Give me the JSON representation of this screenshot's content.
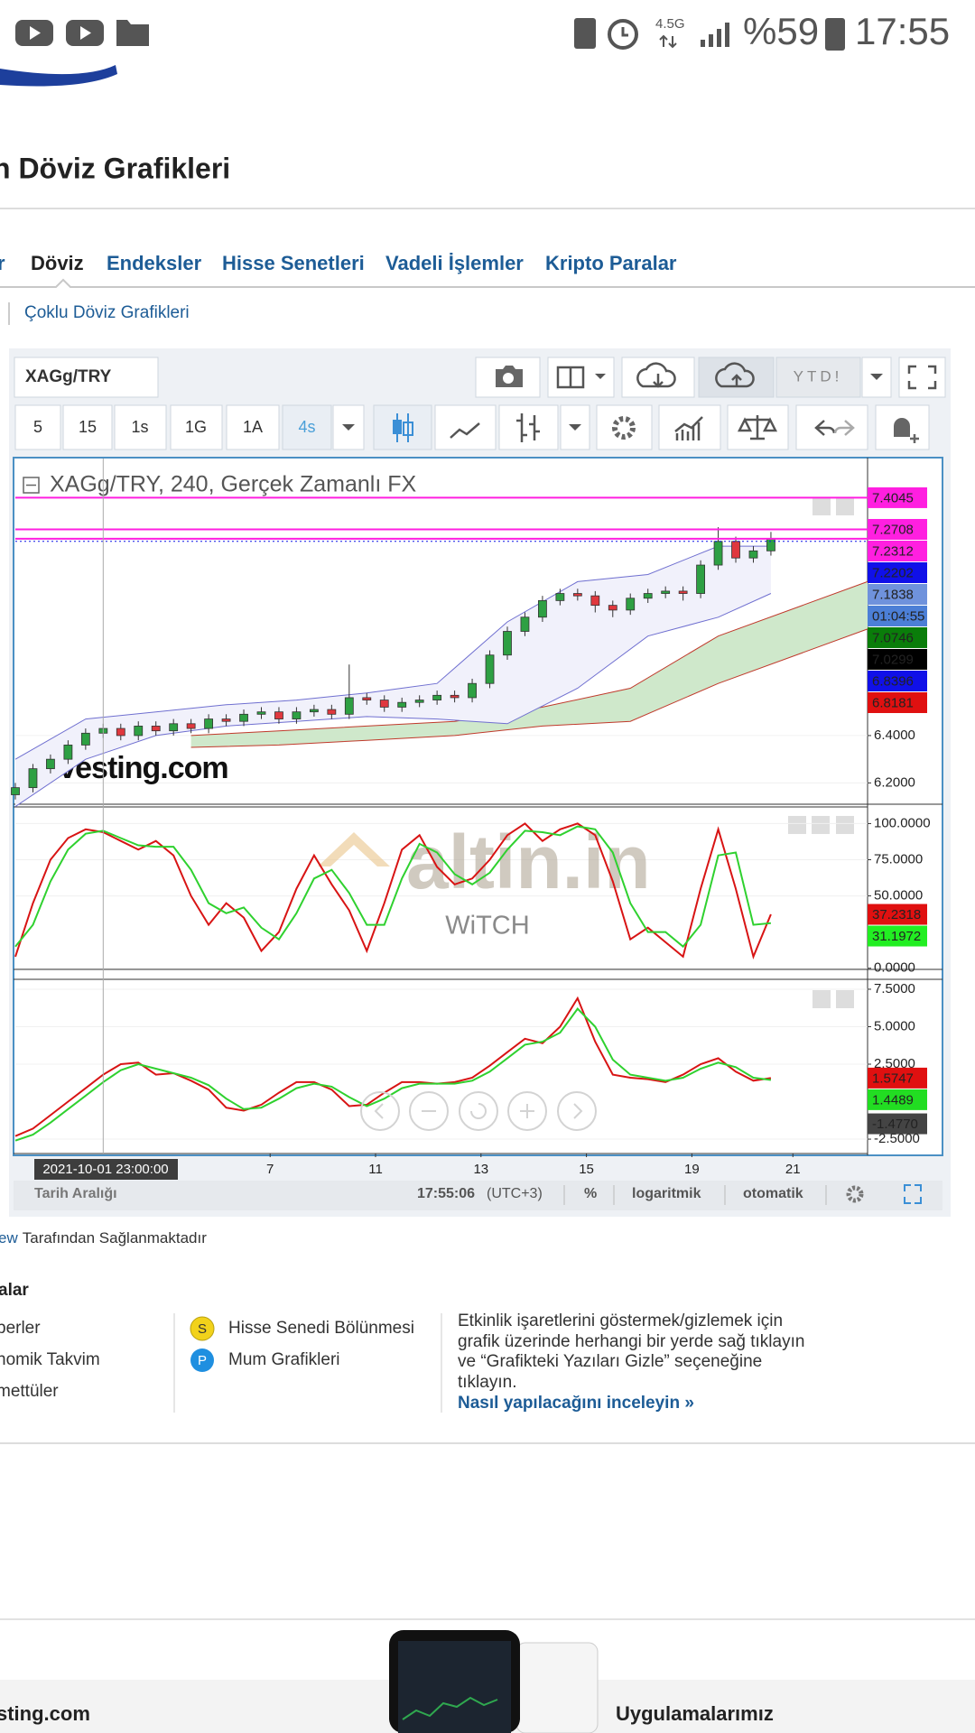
{
  "status_bar": {
    "network": "4.5G",
    "battery": "%59",
    "time": "17:55"
  },
  "header": {
    "title": "n Döviz Grafikleri"
  },
  "nav": {
    "items": [
      "r",
      "Döviz",
      "Endeksler",
      "Hisse Senetleri",
      "Vadeli İşlemler",
      "Kripto Paralar"
    ]
  },
  "breadcrumb": "Çoklu Döviz Grafikleri",
  "toolbar": {
    "symbol": "XAGg/TRY",
    "range": "YTD!",
    "intervals": [
      "5",
      "15",
      "1s",
      "1G",
      "1A",
      "4s"
    ]
  },
  "chart_data": [
    {
      "type": "candlestick",
      "title": "XAGg/TRY, 240, Gerçek Zamanlı FX",
      "watermark": "Investing.com",
      "x": [
        0,
        2,
        4,
        6,
        8,
        10,
        12,
        14,
        16,
        18,
        20,
        22,
        24,
        26,
        28,
        30,
        32,
        34,
        36,
        38,
        40,
        42,
        44,
        46,
        48,
        50,
        52,
        54,
        56,
        58,
        60,
        62,
        64,
        66,
        68,
        70,
        72,
        74,
        76,
        78,
        80,
        82,
        84,
        86
      ],
      "open": [
        6.15,
        6.18,
        6.26,
        6.3,
        6.36,
        6.41,
        6.43,
        6.4,
        6.44,
        6.42,
        6.45,
        6.43,
        6.47,
        6.46,
        6.49,
        6.5,
        6.47,
        6.5,
        6.51,
        6.49,
        6.56,
        6.55,
        6.52,
        6.54,
        6.55,
        6.57,
        6.56,
        6.62,
        6.74,
        6.84,
        6.9,
        6.97,
        7.0,
        6.99,
        6.95,
        6.93,
        6.98,
        7.0,
        7.01,
        7.0,
        7.12,
        7.22,
        7.15,
        7.18
      ],
      "high": [
        6.2,
        6.28,
        6.32,
        6.38,
        6.43,
        6.45,
        6.45,
        6.46,
        6.46,
        6.47,
        6.47,
        6.49,
        6.49,
        6.51,
        6.52,
        6.52,
        6.52,
        6.53,
        6.53,
        6.7,
        6.58,
        6.57,
        6.56,
        6.57,
        6.59,
        6.59,
        6.64,
        6.76,
        6.86,
        6.92,
        6.99,
        7.02,
        7.02,
        7.01,
        6.97,
        7.0,
        7.02,
        7.03,
        7.03,
        7.14,
        7.28,
        7.24,
        7.2,
        7.26
      ],
      "low": [
        6.13,
        6.16,
        6.24,
        6.28,
        6.34,
        6.39,
        6.38,
        6.38,
        6.4,
        6.4,
        6.41,
        6.41,
        6.44,
        6.44,
        6.47,
        6.45,
        6.45,
        6.48,
        6.47,
        6.47,
        6.53,
        6.5,
        6.5,
        6.52,
        6.53,
        6.54,
        6.54,
        6.6,
        6.72,
        6.82,
        6.88,
        6.95,
        6.97,
        6.92,
        6.9,
        6.91,
        6.96,
        6.98,
        6.97,
        6.98,
        7.1,
        7.13,
        7.13,
        7.16
      ],
      "close": [
        6.18,
        6.26,
        6.3,
        6.36,
        6.41,
        6.43,
        6.4,
        6.44,
        6.42,
        6.45,
        6.43,
        6.47,
        6.46,
        6.49,
        6.5,
        6.47,
        6.5,
        6.51,
        6.49,
        6.56,
        6.55,
        6.52,
        6.54,
        6.55,
        6.57,
        6.56,
        6.62,
        6.74,
        6.84,
        6.9,
        6.97,
        7.0,
        6.99,
        6.95,
        6.93,
        6.98,
        7.0,
        7.01,
        7.0,
        7.12,
        7.22,
        7.15,
        7.18,
        7.23
      ],
      "up_color": "#2ea043",
      "down_color": "#e0383e",
      "bands": {
        "x": [
          0,
          8,
          16,
          24,
          32,
          40,
          48,
          56,
          64,
          72,
          80,
          86
        ],
        "upper": [
          6.3,
          6.47,
          6.5,
          6.53,
          6.55,
          6.58,
          6.62,
          6.88,
          7.05,
          7.08,
          7.2,
          7.2
        ],
        "lower": [
          6.1,
          6.3,
          6.4,
          6.44,
          6.46,
          6.48,
          6.47,
          6.45,
          6.6,
          6.82,
          6.9,
          7.0
        ],
        "color": "#6f6fd0",
        "fill": "#f1f1fb"
      },
      "cloud": {
        "x": [
          20,
          30,
          40,
          50,
          60,
          70,
          80,
          97
        ],
        "upper": [
          6.4,
          6.42,
          6.44,
          6.46,
          6.52,
          6.6,
          6.82,
          7.05
        ],
        "lower": [
          6.35,
          6.36,
          6.38,
          6.4,
          6.44,
          6.46,
          6.62,
          6.85
        ],
        "color": "#c0392b",
        "fill": "#cfe8cb"
      },
      "xlim": [
        0,
        97
      ],
      "ylim": [
        6.11,
        7.57
      ],
      "yticks": [
        {
          "value": 6.2,
          "label": "6.2000"
        },
        {
          "value": 6.4,
          "label": "6.4000"
        }
      ],
      "price_tags": [
        {
          "value": 7.4045,
          "color": "#ff1fe0",
          "line_style": "solid"
        },
        {
          "value": 7.2708,
          "color": "#ff1fe0",
          "line_style": "solid"
        },
        {
          "value": 7.2312,
          "color": "#ff1fe0",
          "line_style": "solid"
        },
        {
          "value": 7.2202,
          "color": "#1010e8",
          "line_style": "dotted"
        },
        {
          "value": 7.1838,
          "color": "#6f92dc"
        },
        {
          "label": "01:04:55",
          "color": "#4c7fd6"
        },
        {
          "value": 7.0746,
          "color": "#0a7d0a"
        },
        {
          "value": 7.0299,
          "color": "#000000"
        },
        {
          "value": 6.8396,
          "color": "#1010e8"
        },
        {
          "value": 6.8181,
          "color": "#e01010"
        }
      ]
    },
    {
      "type": "line",
      "watermark": "altin.in",
      "watermark_sub": "WiTCH",
      "x": [
        0,
        2,
        4,
        6,
        8,
        10,
        12,
        14,
        16,
        18,
        20,
        22,
        24,
        26,
        28,
        30,
        32,
        34,
        36,
        38,
        40,
        42,
        44,
        46,
        48,
        50,
        52,
        54,
        56,
        58,
        60,
        62,
        64,
        66,
        68,
        70,
        72,
        74,
        76,
        78,
        80,
        82,
        84,
        86
      ],
      "series": [
        {
          "color": "#d81414",
          "values": [
            8,
            45,
            75,
            90,
            96,
            94,
            88,
            82,
            88,
            78,
            50,
            30,
            45,
            35,
            12,
            25,
            55,
            78,
            58,
            40,
            12,
            45,
            82,
            92,
            70,
            58,
            62,
            75,
            92,
            100,
            88,
            96,
            100,
            92,
            60,
            20,
            28,
            18,
            8,
            55,
            96,
            55,
            8,
            37.2318
          ]
        },
        {
          "color": "#2fd12f",
          "values": [
            15,
            30,
            60,
            82,
            93,
            95,
            90,
            85,
            84,
            84,
            68,
            45,
            38,
            42,
            28,
            20,
            38,
            62,
            68,
            52,
            30,
            30,
            62,
            86,
            80,
            65,
            58,
            66,
            82,
            95,
            94,
            92,
            98,
            96,
            80,
            45,
            25,
            25,
            15,
            30,
            78,
            80,
            30,
            31.1972
          ]
        }
      ],
      "xlim": [
        0,
        97
      ],
      "ylim": [
        -0.8,
        111.5
      ],
      "yticks": [
        {
          "value": 0,
          "label": "0.0000"
        },
        {
          "value": 50,
          "label": "50.0000"
        },
        {
          "value": 75,
          "label": "75.0000"
        },
        {
          "value": 100,
          "label": "100.0000"
        }
      ],
      "price_tags": [
        {
          "value": 37.2318,
          "color": "#e01010"
        },
        {
          "value": 31.1972,
          "color": "#22ee22",
          "text_color": "#222222"
        }
      ]
    },
    {
      "type": "line",
      "x": [
        0,
        2,
        4,
        6,
        8,
        10,
        12,
        14,
        16,
        18,
        20,
        22,
        24,
        26,
        28,
        30,
        32,
        34,
        36,
        38,
        40,
        42,
        44,
        46,
        48,
        50,
        52,
        54,
        56,
        58,
        60,
        62,
        64,
        66,
        68,
        70,
        72,
        74,
        76,
        78,
        80,
        82,
        84,
        86
      ],
      "series": [
        {
          "color": "#d81414",
          "values": [
            -2.3,
            -1.8,
            -0.9,
            0.0,
            0.9,
            1.8,
            2.5,
            2.6,
            1.8,
            1.9,
            1.4,
            0.8,
            -0.4,
            -0.6,
            -0.2,
            0.6,
            1.3,
            1.3,
            0.8,
            -0.3,
            -0.2,
            0.6,
            1.3,
            1.3,
            1.2,
            1.3,
            1.6,
            2.4,
            3.3,
            4.2,
            3.9,
            5.0,
            6.9,
            4.0,
            1.8,
            1.6,
            1.5,
            1.3,
            1.8,
            2.5,
            2.9,
            2.0,
            1.4,
            1.5747
          ]
        },
        {
          "color": "#2fd12f",
          "values": [
            -2.6,
            -2.2,
            -1.4,
            -0.5,
            0.4,
            1.3,
            2.1,
            2.5,
            2.2,
            1.9,
            1.6,
            1.1,
            0.2,
            -0.5,
            -0.4,
            0.2,
            0.9,
            1.2,
            1.0,
            0.3,
            -0.3,
            0.2,
            0.9,
            1.2,
            1.2,
            1.2,
            1.4,
            2.0,
            2.9,
            3.8,
            4.0,
            4.6,
            6.2,
            5.0,
            2.8,
            1.8,
            1.6,
            1.4,
            1.6,
            2.2,
            2.6,
            2.3,
            1.6,
            1.4489
          ]
        }
      ],
      "xlim": [
        0,
        97
      ],
      "ylim": [
        -3.46,
        8.16
      ],
      "yticks": [
        {
          "value": -2.5,
          "label": "-2.5000"
        },
        {
          "value": 2.5,
          "label": "2.5000"
        },
        {
          "value": 5,
          "label": "5.0000"
        },
        {
          "value": 7.5,
          "label": "7.5000"
        }
      ],
      "xticks": [
        {
          "value": 29,
          "label": "7"
        },
        {
          "value": 41,
          "label": "11"
        },
        {
          "value": 53,
          "label": "13"
        },
        {
          "value": 65,
          "label": "15"
        },
        {
          "value": 77,
          "label": "19"
        },
        {
          "value": 88.5,
          "label": "21"
        }
      ],
      "crosshair": {
        "x": 10,
        "label": "2021-10-01 23:00:00"
      },
      "price_tags": [
        {
          "value": 1.5747,
          "color": "#e01010"
        },
        {
          "value": 1.4489,
          "color": "#22dd22"
        },
        {
          "value": -1.477,
          "label": "-1.4770",
          "color": "#444444"
        }
      ]
    }
  ],
  "status_line": {
    "range": "Tarih Aralığı",
    "time": "17:55:06",
    "timezone": "(UTC+3)",
    "percent": "%",
    "log": "logaritmik",
    "auto": "otomatik"
  },
  "credit": {
    "link": "ew",
    "text": "Tarafından Sağlanmaktadır"
  },
  "legend": {
    "title": "alar",
    "items": [
      "berler",
      "nomik Takvim",
      "mettüler"
    ],
    "markers": [
      {
        "badge": "S",
        "label": "Hisse Senedi Bölünmesi"
      },
      {
        "badge": "P",
        "label": "Mum Grafikleri"
      }
    ],
    "note": "Etkinlik işaretlerini göstermek/gizlemek için grafik üzerinde herhangi bir yerde sağ tıklayın ve “Grafikteki Yazıları Gizle” seçeneğine tıklayın.",
    "link": "Nasıl yapılacağını inceleyin »"
  },
  "footer": {
    "site": "sting.com",
    "apps": "Uygulamalarımız"
  }
}
